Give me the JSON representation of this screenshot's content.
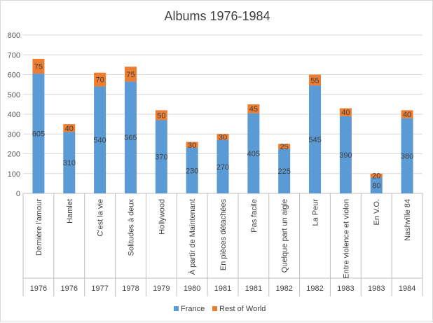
{
  "chart_data": {
    "type": "bar",
    "stacked": true,
    "title": "Albums 1976-1984",
    "categories": [
      "Dernière l'amour",
      "Hamlet",
      "C'est la vie",
      "Solitudes à deux",
      "Hollywood",
      "À partir de Maintenant",
      "En pièces détachées",
      "Pas facile",
      "Quelque part un aigle",
      "La Peur",
      "Entre violence et violon",
      "En V.O.",
      "Nashville 84"
    ],
    "years": [
      "1976",
      "1976",
      "1977",
      "1978",
      "1979",
      "1980",
      "1981",
      "1981",
      "1982",
      "1982",
      "1983",
      "1983",
      "1984"
    ],
    "series": [
      {
        "name": "France",
        "color": "#5b9bd5",
        "values": [
          605,
          310,
          540,
          565,
          370,
          230,
          270,
          405,
          225,
          545,
          390,
          80,
          380
        ]
      },
      {
        "name": "Rest of World",
        "color": "#ed7d31",
        "values": [
          75,
          40,
          70,
          75,
          50,
          30,
          30,
          45,
          25,
          55,
          40,
          20,
          40
        ]
      }
    ],
    "ylim": [
      0,
      800
    ],
    "yticks": [
      0,
      100,
      200,
      300,
      400,
      500,
      600,
      700,
      800
    ],
    "grid": true,
    "legend_position": "bottom"
  }
}
